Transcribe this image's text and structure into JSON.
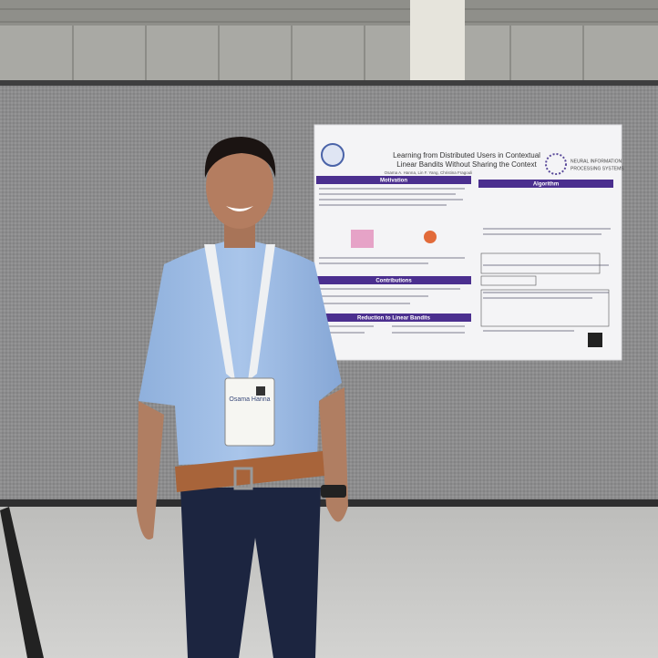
{
  "poster": {
    "title_lines": [
      "Learning from Distributed Users in Contextual",
      "Linear Bandits Without Sharing the Context"
    ],
    "authors": "Osama A. Hanna, Lin F. Yang, Christina Fragouli",
    "logo_lines": [
      "NEURAL INFORMATION",
      "PROCESSING SYSTEMS"
    ],
    "sections": [
      "Motivation",
      "Algorithm",
      "Contributions",
      "Reduction to Linear Bandits"
    ]
  },
  "badge": {
    "name": "Osama Hanna"
  }
}
